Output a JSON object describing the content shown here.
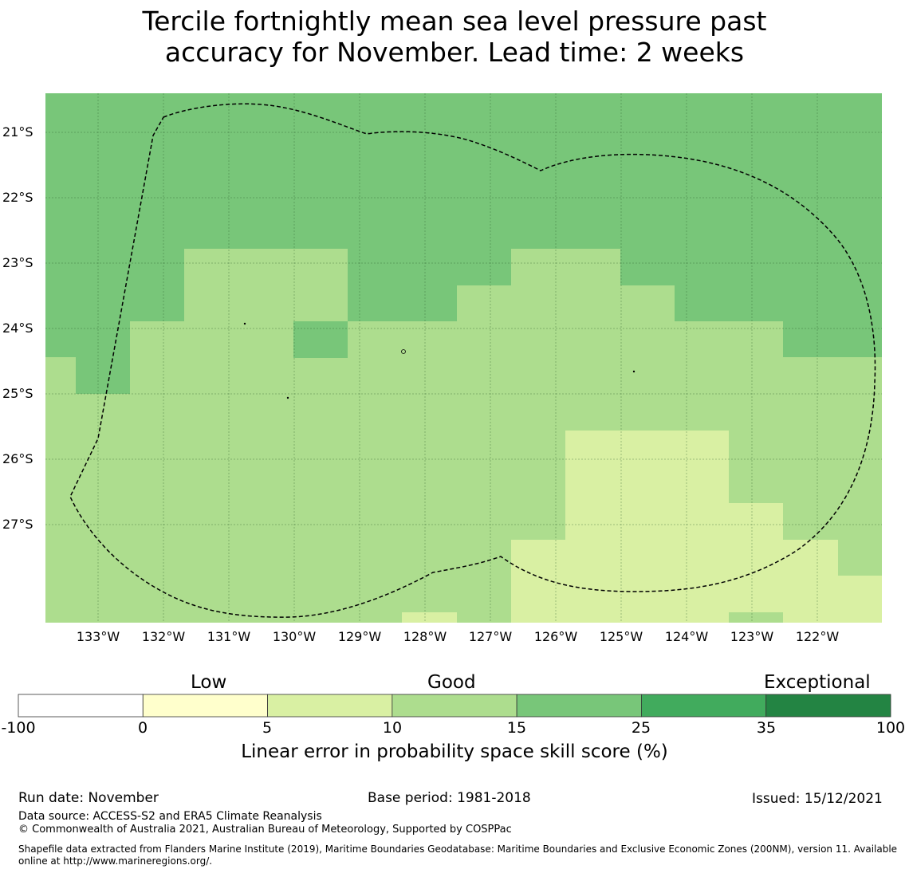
{
  "title_line1": "Tercile fortnightly mean sea level pressure past",
  "title_line2": "accuracy for November. Lead time: 2 weeks",
  "lat_labels": [
    "21°S",
    "22°S",
    "23°S",
    "24°S",
    "25°S",
    "26°S",
    "27°S"
  ],
  "lon_labels": [
    "133°W",
    "132°W",
    "131°W",
    "130°W",
    "129°W",
    "128°W",
    "127°W",
    "126°W",
    "125°W",
    "124°W",
    "123°W",
    "122°W"
  ],
  "colorbar": {
    "categories": [
      "Low",
      "Good",
      "Exceptional"
    ],
    "ticks": [
      "-100",
      "0",
      "5",
      "10",
      "15",
      "25",
      "35",
      "100"
    ],
    "colors": [
      "#ffffff",
      "#ffffcc",
      "#d9f0a3",
      "#addd8e",
      "#78c679",
      "#41ab5d",
      "#238443"
    ],
    "label": "Linear error in probability space skill score (%)"
  },
  "skill_field": {
    "legend_colors": {
      "5-10": "#d9f0a3",
      "10-15": "#addd8e",
      "15-25": "#78c679"
    },
    "dominant_north": "15-25",
    "dominant_central": "10-15",
    "dominant_southeast": "5-10"
  },
  "footer": {
    "run_date": "Run date: November",
    "base_period": "Base period: 1981-2018",
    "issued": "Issued: 15/12/2021",
    "data_source": "Data source: ACCESS-S2 and ERA5 Climate Reanalysis",
    "copyright": "© Commonwealth of Australia 2021, Australian Bureau of Meteorology, Supported by COSPPac",
    "shapefile": "Shapefile data extracted from Flanders Marine Institute (2019), Maritime Boundaries Geodatabase: Maritime Boundaries and Exclusive Economic Zones (200NM), version 11. Available online at http://www.marineregions.org/."
  }
}
